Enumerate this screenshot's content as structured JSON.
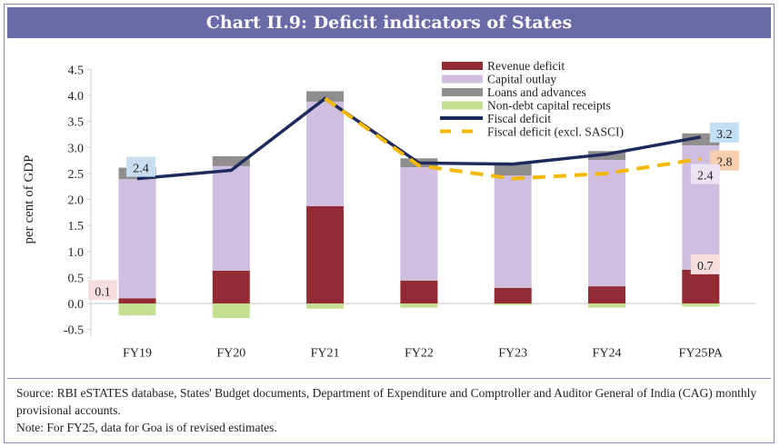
{
  "title": "Chart II.9: Deficit indicators of States",
  "source": "Source: RBI eSTATES database, States' Budget documents, Department of Expenditure and Comptroller and Auditor General of India (CAG) monthly provisional accounts.",
  "note": "Note: For FY25, data for Goa is of revised estimates.",
  "chart_data": {
    "type": "bar",
    "title": "Chart II.9: Deficit indicators of States",
    "xlabel": "",
    "ylabel": "per cent of GDP",
    "ylim": [
      -0.5,
      4.5
    ],
    "yticks": [
      "-0.5",
      "0.0",
      "0.5",
      "1.0",
      "1.5",
      "2.0",
      "2.5",
      "3.0",
      "3.5",
      "4.0",
      "4.5"
    ],
    "categories": [
      "FY19",
      "FY20",
      "FY21",
      "FY22",
      "FY23",
      "FY24",
      "FY25PA"
    ],
    "legend_position": "top-right",
    "stacked_series": [
      {
        "name": "Revenue deficit",
        "color": "#922b33",
        "values": [
          0.1,
          0.63,
          1.87,
          0.44,
          0.3,
          0.33,
          0.65
        ]
      },
      {
        "name": "Capital outlay",
        "color": "#cfbedf",
        "values": [
          2.29,
          2.01,
          2.01,
          2.18,
          2.16,
          2.43,
          2.39
        ]
      },
      {
        "name": "Loans and advances",
        "color": "#8f8d8d",
        "values": [
          0.22,
          0.19,
          0.2,
          0.17,
          0.23,
          0.17,
          0.23
        ]
      },
      {
        "name": "Non-debt capital receipts",
        "color": "#c3df92",
        "values": [
          -0.23,
          -0.28,
          -0.1,
          -0.08,
          -0.03,
          -0.08,
          -0.06
        ]
      }
    ],
    "line_series": [
      {
        "name": "Fiscal deficit",
        "color": "#1f2a5c",
        "dashed": false,
        "values": [
          2.4,
          2.56,
          3.94,
          2.7,
          2.68,
          2.87,
          3.2
        ]
      },
      {
        "name": "Fiscal deficit (excl. SASCI)",
        "color": "#f5b800",
        "dashed": true,
        "values": [
          null,
          null,
          3.94,
          2.65,
          2.4,
          2.5,
          2.78
        ]
      }
    ],
    "annotations": [
      {
        "text": "2.4",
        "category": "FY19",
        "value": 2.4,
        "bg": "#c9ddf0"
      },
      {
        "text": "0.1",
        "category": "FY19",
        "value": 0.1,
        "bg": "#f6dede"
      },
      {
        "text": "3.2",
        "category": "FY25PA",
        "value": 3.2,
        "bg": "#c2def2"
      },
      {
        "text": "2.8",
        "category": "FY25PA",
        "value": 2.8,
        "bg": "#f7cfae"
      },
      {
        "text": "2.4",
        "category": "FY25PA",
        "value": 2.4,
        "bg": "#ece4f2"
      },
      {
        "text": "0.7",
        "category": "FY25PA",
        "value": 0.7,
        "bg": "#f6dede"
      }
    ]
  }
}
